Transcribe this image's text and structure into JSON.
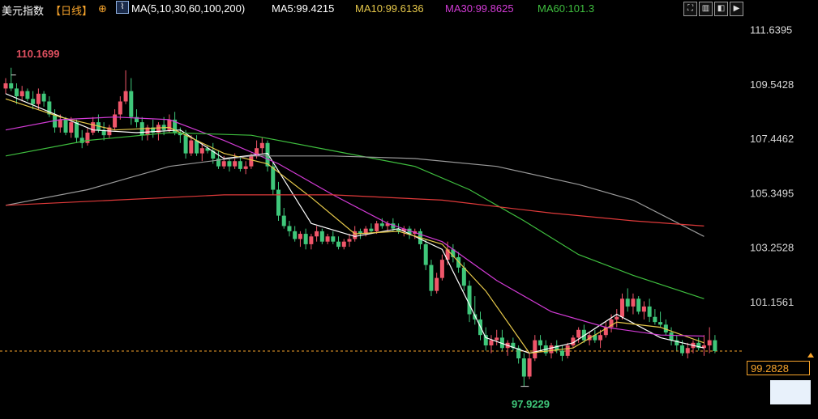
{
  "header": {
    "title": "美元指数",
    "period": "【日线】",
    "ma_label": "MA(5,10,30,60,100,200)",
    "ma5": "MA5:99.4215",
    "ma10": "MA10:99.6136",
    "ma30": "MA30:99.8625",
    "ma60": "MA60:101.3"
  },
  "colors": {
    "up": "#f0566a",
    "down": "#3fc77a",
    "ma5": "#ffffff",
    "ma10": "#e6c84a",
    "ma30": "#d33bd6",
    "ma60": "#3fbf3f",
    "ma100": "#9a9a9a",
    "ma200": "#e03a3a",
    "axis_text": "#d8d8d8",
    "current_price": "#f7a42c"
  },
  "toolbar": [
    "zoom-fit-icon",
    "zoom-in-icon",
    "prev-icon",
    "next-icon"
  ],
  "current_price": "99.2828",
  "chart_data": {
    "type": "candlestick",
    "y_ticks": [
      "111.6395",
      "109.5428",
      "107.4462",
      "105.3495",
      "103.2528",
      "101.1561"
    ],
    "ylim": [
      97.35,
      112.0
    ],
    "grid": false,
    "annotations": {
      "high": "110.1699",
      "low": "97.9229"
    },
    "current_price": 99.2828,
    "candles": [
      [
        109.4,
        109.8,
        109.2,
        109.6
      ],
      [
        109.6,
        110.2,
        109.3,
        109.4
      ],
      [
        109.4,
        109.6,
        108.8,
        109.1
      ],
      [
        109.1,
        109.5,
        108.9,
        109.3
      ],
      [
        109.3,
        109.4,
        108.9,
        109.0
      ],
      [
        109.0,
        109.3,
        108.6,
        108.8
      ],
      [
        108.8,
        109.4,
        108.6,
        109.2
      ],
      [
        109.2,
        109.3,
        108.7,
        108.9
      ],
      [
        108.9,
        109.1,
        108.3,
        108.4
      ],
      [
        108.4,
        108.6,
        107.7,
        107.9
      ],
      [
        107.9,
        108.4,
        107.7,
        108.2
      ],
      [
        108.2,
        108.3,
        107.6,
        107.7
      ],
      [
        107.7,
        108.3,
        107.5,
        108.1
      ],
      [
        108.1,
        108.2,
        107.3,
        107.5
      ],
      [
        107.5,
        107.8,
        107.1,
        107.3
      ],
      [
        107.3,
        107.9,
        107.2,
        107.7
      ],
      [
        107.7,
        108.3,
        107.6,
        108.1
      ],
      [
        108.1,
        108.4,
        107.7,
        107.8
      ],
      [
        107.8,
        108.1,
        107.4,
        107.6
      ],
      [
        107.6,
        108.0,
        107.5,
        107.9
      ],
      [
        107.9,
        108.6,
        107.8,
        108.4
      ],
      [
        108.4,
        109.1,
        108.2,
        108.9
      ],
      [
        108.9,
        110.1,
        108.8,
        109.3
      ],
      [
        109.3,
        109.8,
        108.0,
        108.3
      ],
      [
        108.3,
        108.6,
        107.9,
        108.1
      ],
      [
        108.1,
        108.3,
        107.4,
        107.6
      ],
      [
        107.6,
        108.0,
        107.4,
        107.9
      ],
      [
        107.9,
        108.2,
        107.5,
        107.7
      ],
      [
        107.7,
        108.1,
        107.4,
        108.0
      ],
      [
        108.0,
        108.3,
        107.6,
        107.8
      ],
      [
        107.8,
        108.4,
        107.7,
        108.2
      ],
      [
        108.2,
        108.5,
        107.6,
        107.7
      ],
      [
        107.7,
        107.9,
        107.3,
        107.6
      ],
      [
        107.6,
        107.8,
        106.7,
        106.9
      ],
      [
        106.9,
        107.6,
        106.8,
        107.4
      ],
      [
        107.4,
        107.6,
        106.8,
        106.9
      ],
      [
        106.9,
        107.3,
        106.6,
        107.1
      ],
      [
        107.1,
        107.2,
        106.9,
        107.0
      ],
      [
        107.0,
        107.3,
        106.5,
        106.7
      ],
      [
        106.7,
        107.0,
        106.3,
        106.4
      ],
      [
        106.4,
        106.8,
        106.3,
        106.6
      ],
      [
        106.6,
        106.7,
        106.2,
        106.4
      ],
      [
        106.4,
        106.9,
        106.3,
        106.6
      ],
      [
        106.6,
        106.8,
        106.2,
        106.3
      ],
      [
        106.3,
        106.6,
        106.1,
        106.4
      ],
      [
        106.4,
        106.9,
        106.3,
        106.8
      ],
      [
        106.8,
        107.4,
        106.7,
        107.1
      ],
      [
        107.1,
        107.5,
        106.9,
        107.3
      ],
      [
        107.3,
        107.4,
        106.2,
        106.4
      ],
      [
        106.4,
        106.6,
        105.3,
        105.5
      ],
      [
        105.5,
        105.8,
        104.3,
        104.5
      ],
      [
        104.5,
        104.8,
        104.0,
        104.1
      ],
      [
        104.1,
        104.3,
        103.7,
        103.9
      ],
      [
        103.9,
        104.1,
        103.5,
        103.6
      ],
      [
        103.6,
        103.9,
        103.3,
        103.8
      ],
      [
        103.8,
        104.0,
        103.2,
        103.4
      ],
      [
        103.4,
        103.8,
        103.2,
        103.7
      ],
      [
        103.7,
        104.1,
        103.5,
        103.9
      ],
      [
        103.9,
        104.0,
        103.4,
        103.5
      ],
      [
        103.5,
        103.8,
        103.4,
        103.7
      ],
      [
        103.7,
        103.9,
        103.4,
        103.5
      ],
      [
        103.5,
        103.7,
        103.2,
        103.3
      ],
      [
        103.3,
        103.6,
        103.2,
        103.5
      ],
      [
        103.5,
        103.8,
        103.3,
        103.6
      ],
      [
        103.6,
        104.1,
        103.5,
        103.9
      ],
      [
        103.9,
        104.0,
        103.6,
        103.8
      ],
      [
        103.8,
        104.1,
        103.7,
        104.0
      ],
      [
        104.0,
        104.2,
        103.8,
        103.9
      ],
      [
        103.9,
        104.3,
        103.8,
        104.2
      ],
      [
        104.2,
        104.4,
        104.0,
        104.1
      ],
      [
        104.1,
        104.3,
        103.9,
        104.2
      ],
      [
        104.2,
        104.4,
        103.9,
        104.0
      ],
      [
        104.0,
        104.2,
        103.8,
        103.9
      ],
      [
        103.9,
        104.1,
        103.7,
        104.0
      ],
      [
        104.0,
        104.1,
        103.6,
        103.8
      ],
      [
        103.8,
        104.0,
        103.6,
        103.9
      ],
      [
        103.9,
        104.0,
        103.2,
        103.4
      ],
      [
        103.4,
        103.6,
        102.4,
        102.6
      ],
      [
        102.6,
        102.8,
        101.4,
        101.6
      ],
      [
        101.6,
        102.3,
        101.5,
        102.1
      ],
      [
        102.1,
        103.0,
        102.0,
        102.8
      ],
      [
        102.8,
        103.5,
        102.6,
        103.2
      ],
      [
        103.2,
        103.4,
        102.7,
        102.9
      ],
      [
        102.9,
        103.1,
        102.3,
        102.5
      ],
      [
        102.5,
        102.7,
        101.6,
        101.8
      ],
      [
        101.8,
        102.0,
        100.4,
        100.7
      ],
      [
        100.7,
        101.4,
        100.3,
        100.5
      ],
      [
        100.5,
        100.8,
        99.7,
        99.9
      ],
      [
        99.9,
        100.2,
        99.3,
        99.5
      ],
      [
        99.5,
        99.9,
        99.2,
        99.7
      ],
      [
        99.7,
        100.1,
        99.5,
        99.8
      ],
      [
        99.8,
        100.1,
        99.3,
        99.4
      ],
      [
        99.4,
        99.7,
        99.1,
        99.6
      ],
      [
        99.6,
        99.8,
        99.3,
        99.4
      ],
      [
        99.4,
        99.5,
        98.8,
        99.0
      ],
      [
        99.0,
        99.2,
        97.9229,
        98.3
      ],
      [
        98.3,
        99.2,
        98.2,
        99.0
      ],
      [
        99.0,
        99.9,
        98.9,
        99.7
      ],
      [
        99.7,
        99.9,
        99.3,
        99.5
      ],
      [
        99.5,
        99.7,
        99.1,
        99.2
      ],
      [
        99.2,
        99.6,
        99.0,
        99.5
      ],
      [
        99.5,
        99.7,
        99.2,
        99.3
      ],
      [
        99.3,
        99.5,
        98.9,
        99.1
      ],
      [
        99.1,
        99.6,
        99.0,
        99.5
      ],
      [
        99.5,
        99.9,
        99.4,
        99.8
      ],
      [
        99.8,
        100.2,
        99.6,
        100.1
      ],
      [
        100.1,
        100.3,
        99.6,
        99.7
      ],
      [
        99.7,
        100.0,
        99.5,
        99.9
      ],
      [
        99.9,
        100.1,
        99.6,
        99.7
      ],
      [
        99.7,
        100.1,
        99.4,
        99.9
      ],
      [
        99.9,
        100.4,
        99.8,
        100.2
      ],
      [
        100.2,
        100.7,
        100.0,
        100.5
      ],
      [
        100.5,
        100.9,
        100.2,
        100.6
      ],
      [
        100.6,
        101.5,
        100.5,
        101.3
      ],
      [
        101.3,
        101.7,
        100.8,
        101.0
      ],
      [
        101.0,
        101.5,
        100.7,
        101.3
      ],
      [
        101.3,
        101.4,
        100.7,
        100.8
      ],
      [
        100.8,
        101.2,
        100.5,
        101.0
      ],
      [
        101.0,
        101.3,
        100.4,
        100.6
      ],
      [
        100.6,
        100.9,
        100.3,
        100.4
      ],
      [
        100.4,
        100.8,
        100.2,
        100.3
      ],
      [
        100.3,
        100.5,
        99.9,
        100.0
      ],
      [
        100.0,
        100.2,
        99.5,
        99.7
      ],
      [
        99.7,
        99.9,
        99.3,
        99.5
      ],
      [
        99.5,
        99.7,
        99.1,
        99.2
      ],
      [
        99.2,
        99.6,
        99.0,
        99.4
      ],
      [
        99.4,
        99.7,
        99.2,
        99.6
      ],
      [
        99.6,
        99.8,
        99.3,
        99.4
      ],
      [
        99.4,
        99.9,
        99.1,
        99.5
      ],
      [
        99.5,
        100.2,
        99.2,
        99.7
      ],
      [
        99.7,
        99.9,
        99.2,
        99.2828
      ]
    ],
    "ma_series": [
      {
        "name": "MA5",
        "color_key": "ma5",
        "x": [
          0,
          8,
          16,
          24,
          32,
          40,
          48,
          56,
          64,
          72,
          80,
          88,
          96,
          104,
          112,
          120,
          128
        ],
        "y": [
          109.2,
          108.5,
          107.8,
          107.7,
          107.8,
          106.7,
          106.9,
          104.2,
          103.7,
          104.0,
          103.2,
          99.8,
          99.2,
          99.6,
          100.7,
          99.8,
          99.4
        ]
      },
      {
        "name": "MA10",
        "color_key": "ma10",
        "x": [
          0,
          10,
          20,
          30,
          40,
          48,
          56,
          64,
          72,
          80,
          88,
          96,
          104,
          112,
          120,
          128
        ],
        "y": [
          109.0,
          108.3,
          107.8,
          107.9,
          106.9,
          106.5,
          105.2,
          103.8,
          103.9,
          103.4,
          101.6,
          99.2,
          99.4,
          100.4,
          100.2,
          99.6
        ]
      },
      {
        "name": "MA30",
        "color_key": "ma30",
        "x": [
          0,
          10,
          20,
          30,
          40,
          50,
          60,
          70,
          80,
          90,
          100,
          110,
          120,
          128
        ],
        "y": [
          107.8,
          108.2,
          108.3,
          108.2,
          107.4,
          106.5,
          105.3,
          104.2,
          103.5,
          102.0,
          100.8,
          100.2,
          99.9,
          99.86
        ]
      },
      {
        "name": "MA60",
        "color_key": "ma60",
        "x": [
          0,
          15,
          30,
          45,
          60,
          75,
          85,
          95,
          105,
          115,
          128
        ],
        "y": [
          106.8,
          107.4,
          107.7,
          107.6,
          107.0,
          106.4,
          105.5,
          104.3,
          103.0,
          102.2,
          101.3
        ]
      },
      {
        "name": "MA100",
        "color_key": "ma100",
        "x": [
          0,
          15,
          30,
          45,
          60,
          75,
          90,
          105,
          115,
          128
        ],
        "y": [
          104.9,
          105.5,
          106.4,
          106.8,
          106.8,
          106.7,
          106.4,
          105.7,
          105.1,
          103.7
        ]
      },
      {
        "name": "MA200",
        "color_key": "ma200",
        "x": [
          0,
          20,
          40,
          60,
          80,
          100,
          115,
          128
        ],
        "y": [
          104.9,
          105.1,
          105.3,
          105.3,
          105.1,
          104.6,
          104.3,
          104.1
        ]
      }
    ]
  }
}
